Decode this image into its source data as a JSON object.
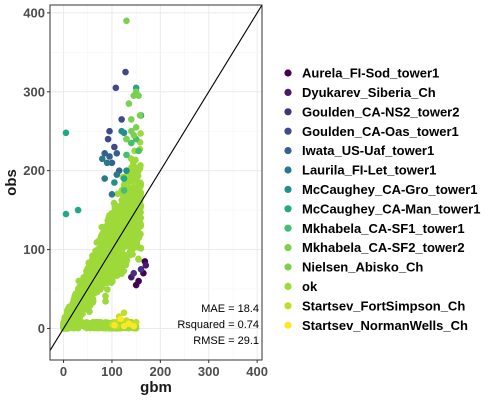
{
  "chart_data": {
    "type": "scatter",
    "title": "",
    "xlabel": "gbm",
    "ylabel": "obs",
    "xlim": [
      -28,
      410
    ],
    "ylim": [
      -40,
      410
    ],
    "x_ticks": [
      0,
      100,
      200,
      300,
      400
    ],
    "y_ticks": [
      0,
      100,
      200,
      300,
      400
    ],
    "x_tick_labels": [
      "0",
      "100",
      "200",
      "300",
      "400"
    ],
    "y_tick_labels": [
      "0",
      "100",
      "200",
      "300",
      "400"
    ],
    "grid": true,
    "reference_line": "y = x",
    "legend_position": "right",
    "stats": [
      "MAE = 18.4",
      "Rsquared = 0.74",
      "RMSE = 29.1"
    ],
    "series": [
      {
        "name": "Aurela_FI-Sod_tower1",
        "color": "#440154",
        "points": [
          [
            168,
            85
          ],
          [
            165,
            70
          ],
          [
            155,
            60
          ],
          [
            150,
            55
          ]
        ]
      },
      {
        "name": "Dyukarev_Siberia_Ch",
        "color": "#481a6c",
        "points": [
          [
            140,
            65
          ],
          [
            170,
            80
          ]
        ]
      },
      {
        "name": "Goulden_CA-NS2_tower2",
        "color": "#472f7d",
        "points": [
          [
            160,
            75
          ],
          [
            145,
            70
          ]
        ]
      },
      {
        "name": "Goulden_CA-Oas_tower1",
        "color": "#3e4a89",
        "points": [
          [
            128,
            325
          ],
          [
            108,
            305
          ],
          [
            120,
            265
          ],
          [
            105,
            230
          ],
          [
            95,
            250
          ],
          [
            92,
            240
          ]
        ]
      },
      {
        "name": "Iwata_US-Uaf_tower1",
        "color": "#35608d",
        "points": [
          [
            85,
            222
          ],
          [
            95,
            218
          ],
          [
            100,
            210
          ],
          [
            110,
            222
          ],
          [
            115,
            200
          ]
        ]
      },
      {
        "name": "Laurila_FI-Let_tower1",
        "color": "#2a788e",
        "points": [
          [
            80,
            215
          ],
          [
            90,
            210
          ],
          [
            110,
            195
          ],
          [
            85,
            190
          ],
          [
            100,
            170
          ]
        ]
      },
      {
        "name": "McCaughey_CA-Gro_tower1",
        "color": "#21908d",
        "points": [
          [
            120,
            250
          ],
          [
            125,
            248
          ],
          [
            130,
            200
          ],
          [
            105,
            185
          ]
        ]
      },
      {
        "name": "McCaughey_CA-Man_tower1",
        "color": "#22a884",
        "points": [
          [
            5,
            248
          ],
          [
            5,
            145
          ],
          [
            30,
            150
          ],
          [
            150,
            305
          ],
          [
            160,
            270
          ],
          [
            125,
            190
          ]
        ]
      },
      {
        "name": "Mkhabela_CA-SF1_tower1",
        "color": "#43bf71",
        "points": [
          [
            140,
            235
          ],
          [
            150,
            240
          ],
          [
            130,
            220
          ],
          [
            155,
            225
          ],
          [
            125,
            175
          ]
        ]
      },
      {
        "name": "Mkhabela_CA-SF2_tower2",
        "color": "#7ad151",
        "points": [
          [
            135,
            285
          ],
          [
            145,
            295
          ],
          [
            150,
            300
          ],
          [
            155,
            295
          ],
          [
            130,
            240
          ],
          [
            140,
            250
          ],
          [
            145,
            245
          ]
        ]
      },
      {
        "name": "Nielsen_Abisko_Ch",
        "color": "#7ad151",
        "points": [
          [
            130,
            390
          ],
          [
            158,
            270
          ],
          [
            130,
            240
          ],
          [
            140,
            265
          ],
          [
            150,
            255
          ]
        ]
      },
      {
        "name": "ok",
        "color": "#9ed93a",
        "points": []
      },
      {
        "name": "Startsev_FortSimpson_Ch",
        "color": "#bddf26",
        "points": [
          [
            100,
            5
          ],
          [
            108,
            8
          ],
          [
            115,
            15
          ],
          [
            125,
            20
          ],
          [
            130,
            10
          ],
          [
            140,
            5
          ],
          [
            150,
            8
          ],
          [
            110,
            3
          ]
        ]
      },
      {
        "name": "Startsev_NormanWells_Ch",
        "color": "#fde725",
        "points": [
          [
            105,
            4
          ],
          [
            118,
            12
          ],
          [
            135,
            6
          ],
          [
            145,
            3
          ],
          [
            125,
            3
          ]
        ]
      }
    ]
  }
}
